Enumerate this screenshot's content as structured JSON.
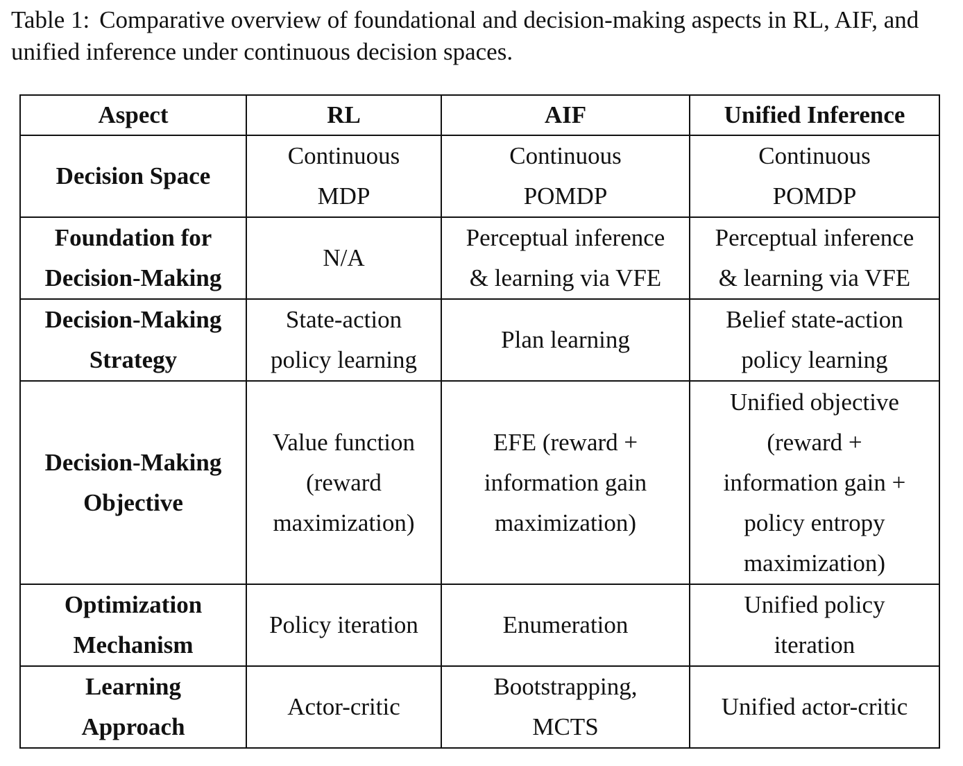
{
  "caption": {
    "label": "Table 1:",
    "text": "Comparative overview of foundational and decision-making aspects in RL, AIF, and unified inference under continuous decision spaces."
  },
  "table": {
    "headers": [
      "Aspect",
      "RL",
      "AIF",
      "Unified Inference"
    ],
    "rows": [
      {
        "aspect": "Decision Space",
        "rl": "Continuous\nMDP",
        "aif": "Continuous\nPOMDP",
        "unified": "Continuous\nPOMDP"
      },
      {
        "aspect": "Foundation for\nDecision-Making",
        "rl": "N/A",
        "aif": "Perceptual inference\n& learning via VFE",
        "unified": "Perceptual inference\n& learning via VFE"
      },
      {
        "aspect": "Decision-Making\nStrategy",
        "rl": "State-action\npolicy learning",
        "aif": "Plan learning",
        "unified": "Belief state-action\npolicy learning"
      },
      {
        "aspect": "Decision-Making\nObjective",
        "rl": "Value function\n(reward\nmaximization)",
        "aif": "EFE (reward +\ninformation gain\nmaximization)",
        "unified": "Unified objective\n(reward +\ninformation gain +\npolicy entropy\nmaximization)"
      },
      {
        "aspect": "Optimization\nMechanism",
        "rl": "Policy iteration",
        "aif": "Enumeration",
        "unified": "Unified policy\niteration"
      },
      {
        "aspect": "Learning\nApproach",
        "rl": "Actor-critic",
        "aif": "Bootstrapping,\nMCTS",
        "unified": "Unified actor-critic"
      }
    ]
  }
}
